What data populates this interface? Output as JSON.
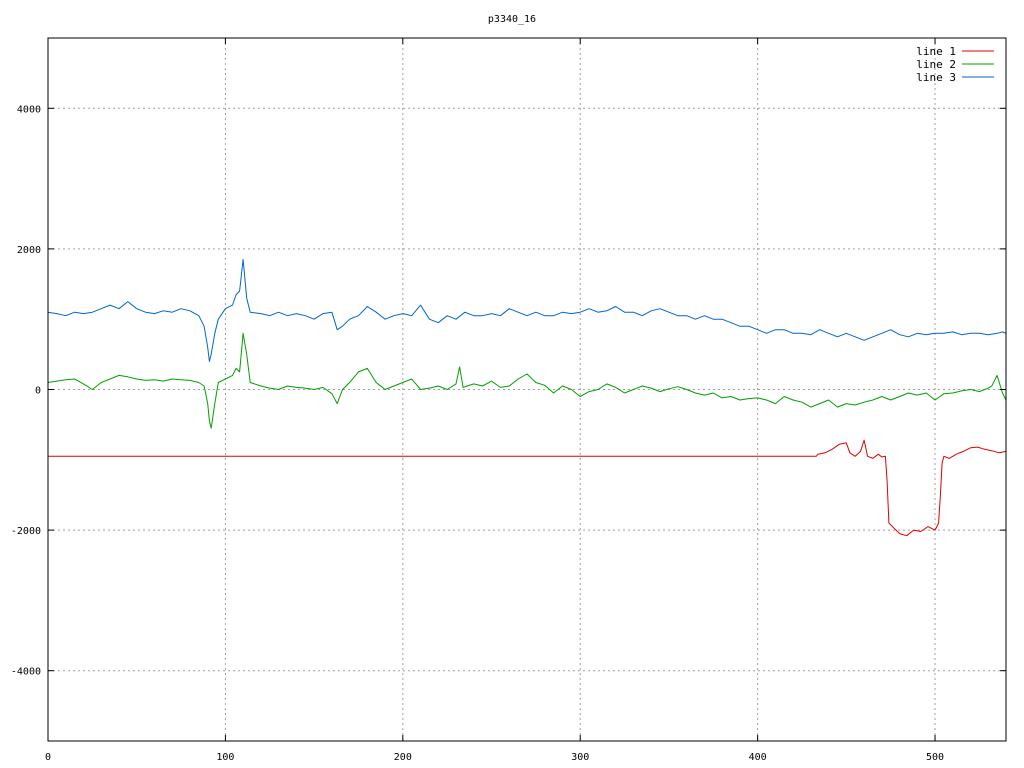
{
  "chart_data": {
    "type": "line",
    "title": "p3340_16",
    "xlabel": "",
    "ylabel": "",
    "xlim": [
      0,
      540
    ],
    "ylim": [
      -5000,
      5000
    ],
    "xticks": [
      0,
      100,
      200,
      300,
      400,
      500
    ],
    "yticks": [
      -4000,
      -2000,
      0,
      2000,
      4000
    ],
    "xtick_labels": [
      "0",
      "100",
      "200",
      "300",
      "400",
      "500"
    ],
    "ytick_labels": [
      "-4000",
      "-2000",
      "0",
      "2000",
      "4000"
    ],
    "grid": true,
    "legend_position": "top-right",
    "series": [
      {
        "name": "line 1",
        "color": "#e00000",
        "x": [
          0,
          433,
          434,
          438,
          442,
          446,
          450,
          452,
          455,
          458,
          460,
          462,
          465,
          468,
          470,
          472,
          473,
          474,
          476,
          480,
          484,
          488,
          492,
          496,
          500,
          502,
          503,
          504,
          505,
          508,
          512,
          516,
          520,
          524,
          528,
          532,
          536,
          540
        ],
        "y": [
          -950,
          -950,
          -920,
          -900,
          -850,
          -780,
          -760,
          -900,
          -950,
          -880,
          -720,
          -950,
          -980,
          -920,
          -960,
          -950,
          -1300,
          -1900,
          -1950,
          -2050,
          -2080,
          -2000,
          -2020,
          -1950,
          -2000,
          -1900,
          -1500,
          -1050,
          -950,
          -980,
          -920,
          -880,
          -830,
          -820,
          -850,
          -870,
          -900,
          -880
        ]
      },
      {
        "name": "line 2",
        "color": "#00a000",
        "x": [
          0,
          5,
          10,
          15,
          20,
          25,
          30,
          35,
          40,
          45,
          50,
          55,
          60,
          65,
          70,
          75,
          80,
          85,
          88,
          90,
          91,
          92,
          94,
          96,
          100,
          104,
          106,
          108,
          110,
          112,
          114,
          120,
          125,
          130,
          135,
          140,
          145,
          150,
          155,
          160,
          163,
          166,
          170,
          175,
          180,
          185,
          190,
          195,
          200,
          205,
          210,
          215,
          220,
          225,
          230,
          232,
          234,
          240,
          245,
          250,
          255,
          260,
          265,
          270,
          275,
          280,
          285,
          290,
          295,
          300,
          305,
          310,
          315,
          320,
          325,
          330,
          335,
          340,
          345,
          350,
          355,
          360,
          365,
          370,
          375,
          380,
          385,
          390,
          395,
          400,
          405,
          410,
          415,
          420,
          425,
          430,
          435,
          440,
          445,
          450,
          455,
          460,
          465,
          470,
          475,
          480,
          485,
          490,
          495,
          500,
          505,
          510,
          515,
          520,
          525,
          530,
          532,
          535,
          538,
          540
        ],
        "y": [
          100,
          120,
          140,
          150,
          80,
          0,
          100,
          150,
          200,
          180,
          150,
          130,
          140,
          120,
          150,
          140,
          130,
          100,
          50,
          -200,
          -450,
          -550,
          -200,
          100,
          150,
          200,
          300,
          250,
          800,
          500,
          100,
          50,
          20,
          0,
          50,
          30,
          20,
          0,
          30,
          -60,
          -200,
          0,
          100,
          250,
          300,
          100,
          0,
          50,
          100,
          150,
          0,
          20,
          50,
          0,
          80,
          320,
          30,
          80,
          50,
          120,
          30,
          50,
          150,
          220,
          100,
          60,
          -50,
          50,
          0,
          -100,
          -30,
          0,
          80,
          30,
          -50,
          0,
          50,
          20,
          -30,
          10,
          40,
          0,
          -50,
          -80,
          -50,
          -120,
          -100,
          -150,
          -130,
          -120,
          -150,
          -200,
          -100,
          -150,
          -180,
          -250,
          -200,
          -150,
          -250,
          -200,
          -220,
          -180,
          -150,
          -100,
          -150,
          -100,
          -50,
          -80,
          -50,
          -150,
          -60,
          -50,
          -20,
          0,
          -30,
          20,
          50,
          200,
          -50,
          -150
        ]
      },
      {
        "name": "line 3",
        "color": "#0066cc",
        "x": [
          0,
          5,
          10,
          15,
          20,
          25,
          30,
          35,
          40,
          45,
          50,
          55,
          60,
          65,
          70,
          75,
          80,
          85,
          88,
          90,
          91,
          92,
          94,
          96,
          100,
          104,
          106,
          108,
          110,
          112,
          114,
          120,
          125,
          130,
          135,
          140,
          145,
          150,
          155,
          160,
          163,
          166,
          170,
          175,
          180,
          185,
          190,
          195,
          200,
          205,
          210,
          215,
          220,
          225,
          230,
          235,
          240,
          245,
          250,
          255,
          260,
          265,
          270,
          275,
          280,
          285,
          290,
          295,
          300,
          305,
          310,
          315,
          320,
          325,
          330,
          335,
          340,
          345,
          350,
          355,
          360,
          365,
          370,
          375,
          380,
          385,
          390,
          395,
          400,
          405,
          410,
          415,
          420,
          425,
          430,
          435,
          440,
          445,
          450,
          455,
          460,
          465,
          470,
          475,
          480,
          485,
          490,
          495,
          500,
          505,
          510,
          515,
          520,
          525,
          530,
          535,
          538,
          540
        ],
        "y": [
          1100,
          1080,
          1050,
          1100,
          1080,
          1100,
          1150,
          1200,
          1150,
          1250,
          1150,
          1100,
          1080,
          1120,
          1100,
          1150,
          1120,
          1050,
          900,
          600,
          400,
          500,
          800,
          1000,
          1150,
          1200,
          1350,
          1400,
          1850,
          1300,
          1100,
          1080,
          1050,
          1100,
          1050,
          1080,
          1050,
          1000,
          1080,
          1100,
          850,
          900,
          1000,
          1050,
          1180,
          1100,
          1000,
          1050,
          1080,
          1050,
          1200,
          1000,
          950,
          1050,
          1000,
          1100,
          1050,
          1050,
          1080,
          1050,
          1150,
          1100,
          1050,
          1100,
          1050,
          1050,
          1100,
          1080,
          1100,
          1150,
          1100,
          1120,
          1180,
          1100,
          1100,
          1050,
          1120,
          1150,
          1100,
          1050,
          1050,
          1000,
          1050,
          1000,
          1000,
          950,
          900,
          900,
          850,
          800,
          850,
          850,
          800,
          800,
          780,
          850,
          800,
          750,
          800,
          750,
          700,
          750,
          800,
          850,
          780,
          750,
          800,
          780,
          800,
          800,
          820,
          780,
          800,
          800,
          780,
          800,
          820,
          800
        ]
      }
    ]
  }
}
